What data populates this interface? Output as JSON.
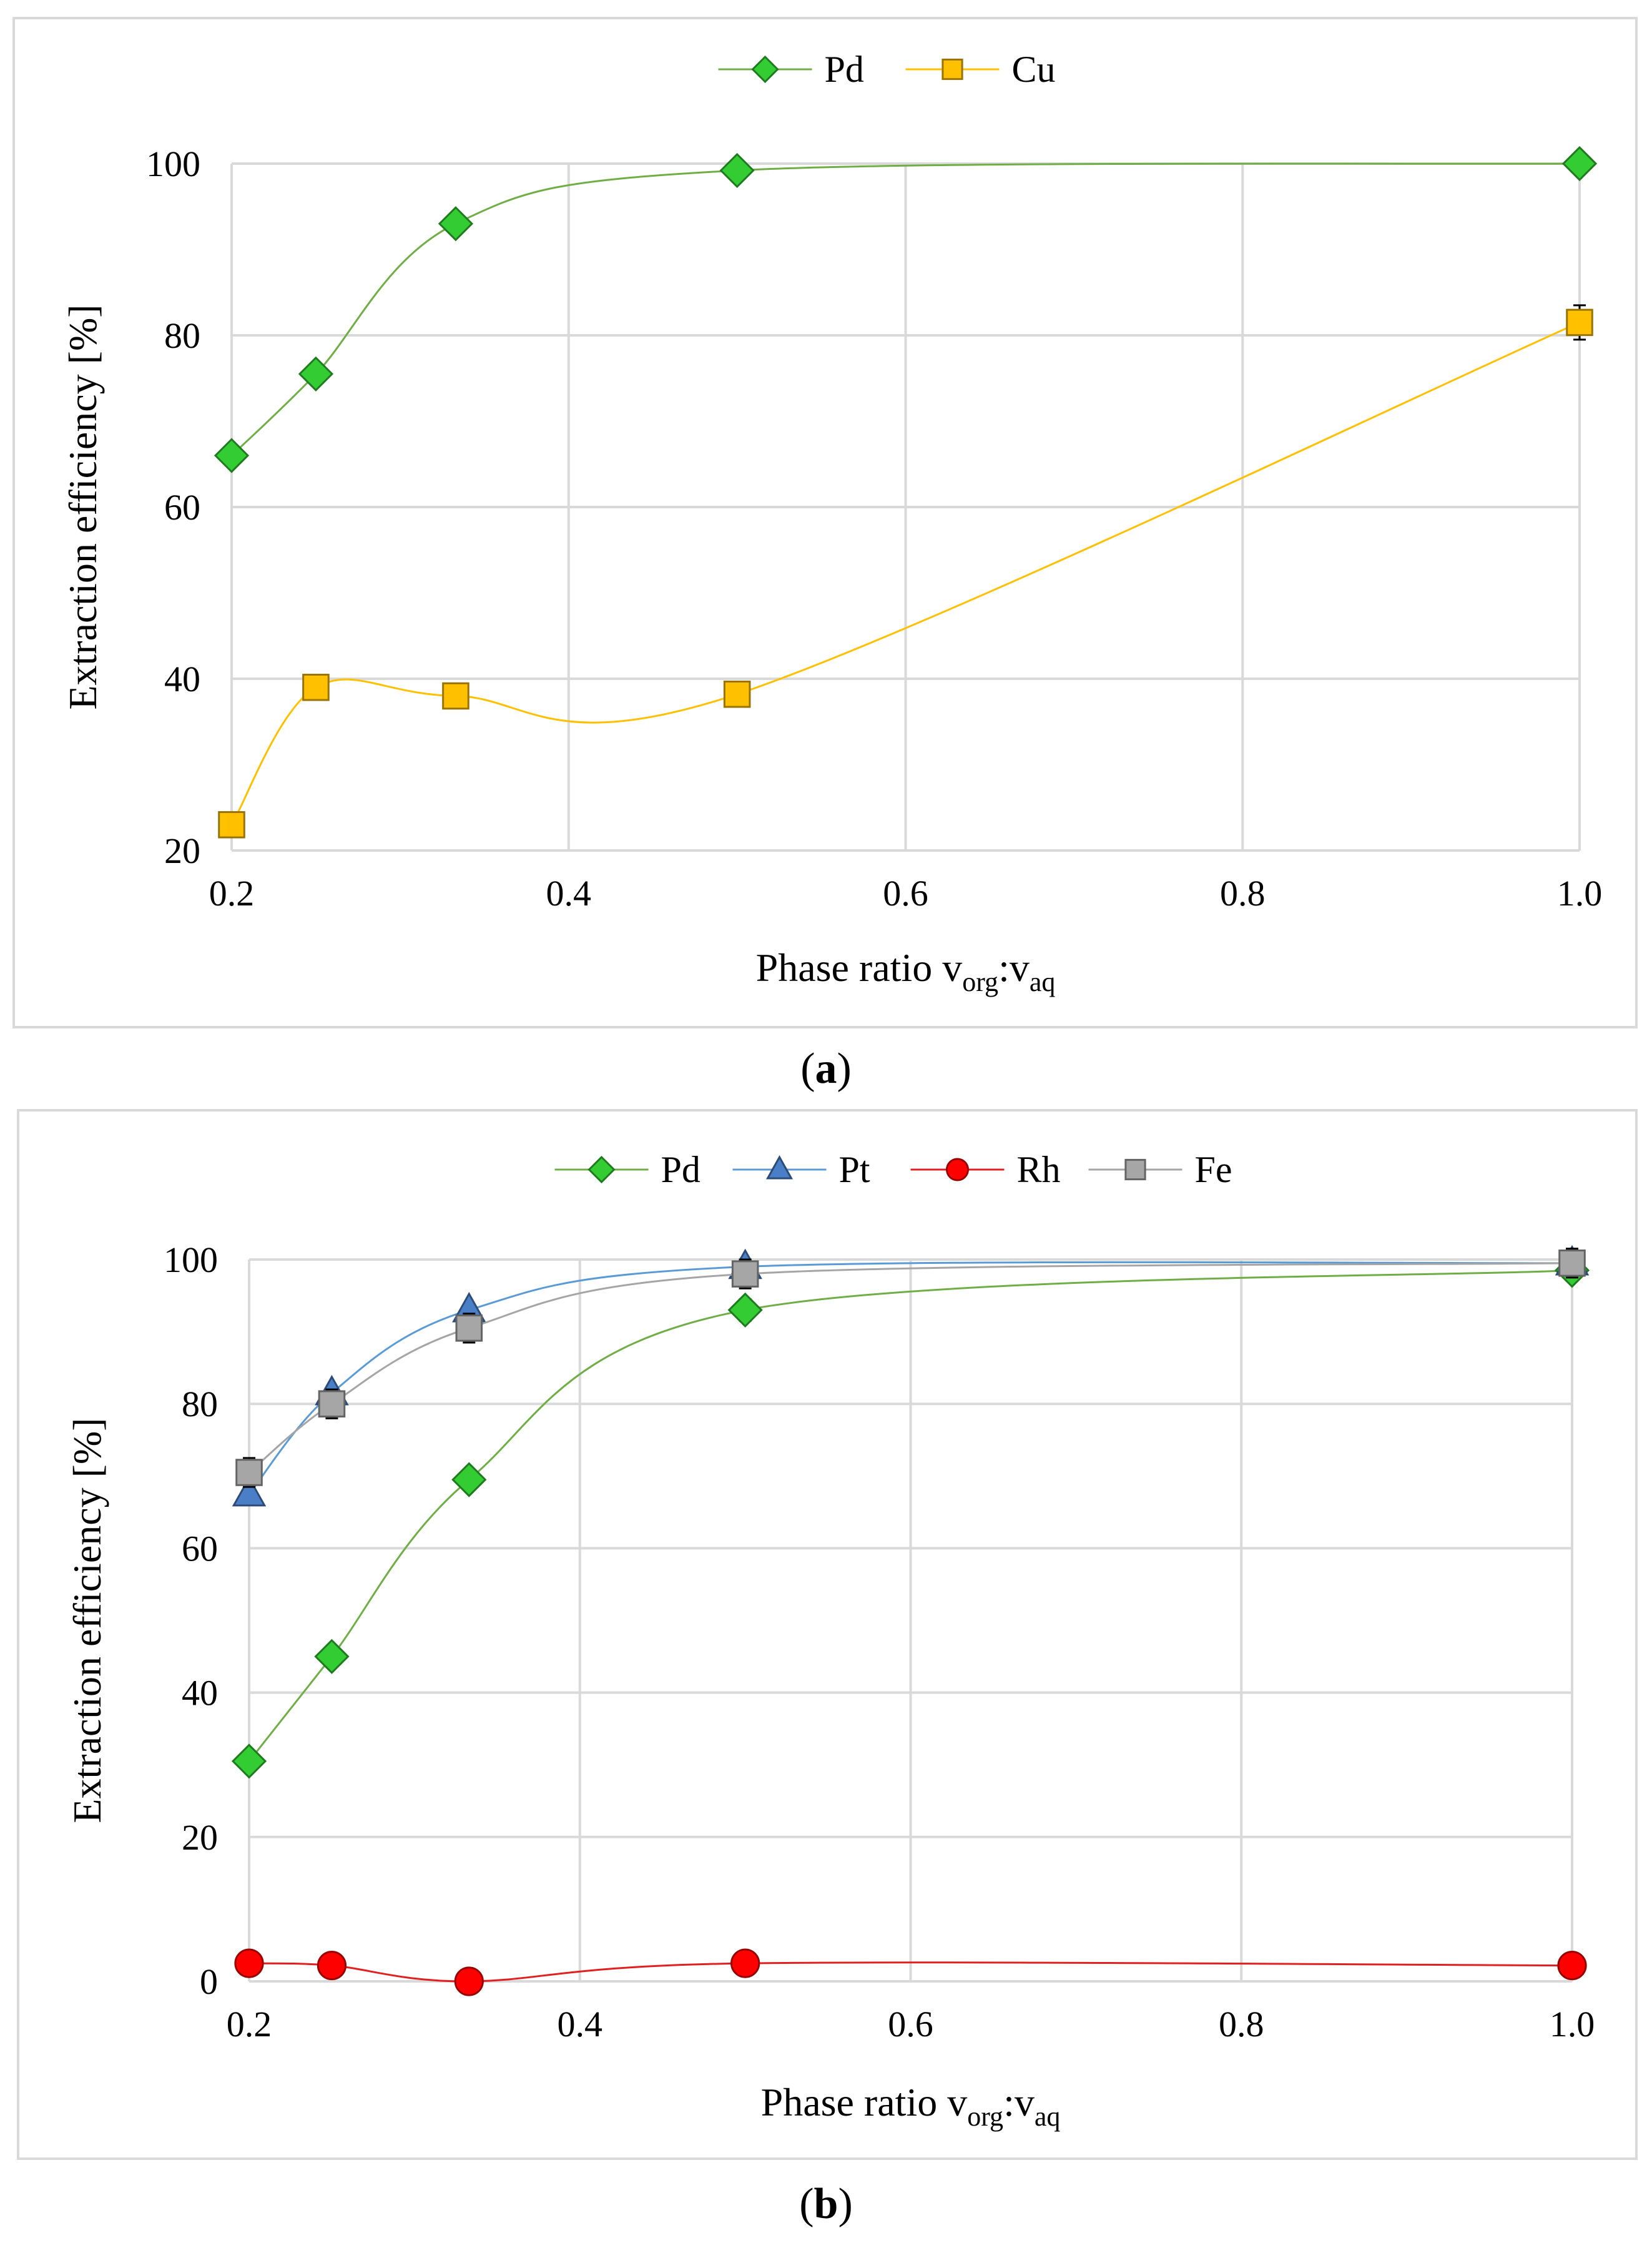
{
  "chart_data": [
    {
      "id": "a",
      "type": "line",
      "caption_letter": "a",
      "ylabel": "Extraction efficiency [%]",
      "xlabel": "Phase ratio v",
      "xlabel_sub1": "org",
      "xlabel_colon": ":v",
      "xlabel_sub2": "aq",
      "xlim": [
        0.2,
        1.0
      ],
      "ylim": [
        20,
        100
      ],
      "xticks": [
        0.2,
        0.4,
        0.6,
        0.8,
        1.0
      ],
      "xtick_labels": [
        "0.2",
        "0.4",
        "0.6",
        "0.8",
        "1.0"
      ],
      "yticks": [
        20,
        40,
        60,
        80,
        100
      ],
      "ytick_labels": [
        "20",
        "40",
        "60",
        "80",
        "100"
      ],
      "grid": true,
      "legend": "top-center",
      "series": [
        {
          "name": "Pd",
          "color": "#70AD47",
          "marker_color": "#33CC33",
          "marker": "diamond",
          "x": [
            0.2,
            0.25,
            0.333,
            0.5,
            1.0
          ],
          "y": [
            66,
            75.5,
            93,
            99.2,
            100
          ],
          "err": [
            0,
            0,
            0,
            0,
            0
          ]
        },
        {
          "name": "Cu",
          "color": "#FFC000",
          "marker_color": "#FFC000",
          "marker": "square",
          "x": [
            0.2,
            0.25,
            0.333,
            0.5,
            1.0
          ],
          "y": [
            23,
            39,
            38,
            38.2,
            81.5
          ],
          "err": [
            0,
            0,
            0,
            0,
            2
          ]
        }
      ]
    },
    {
      "id": "b",
      "type": "line",
      "caption_letter": "b",
      "ylabel": "Extraction efficiency [%]",
      "xlabel": "Phase ratio v",
      "xlabel_sub1": "org",
      "xlabel_colon": ":v",
      "xlabel_sub2": "aq",
      "xlim": [
        0.2,
        1.0
      ],
      "ylim": [
        0,
        100
      ],
      "xticks": [
        0.2,
        0.4,
        0.6,
        0.8,
        1.0
      ],
      "xtick_labels": [
        "0.2",
        "0.4",
        "0.6",
        "0.8",
        "1.0"
      ],
      "yticks": [
        0,
        20,
        40,
        60,
        80,
        100
      ],
      "ytick_labels": [
        "0",
        "20",
        "40",
        "60",
        "80",
        "100"
      ],
      "grid": true,
      "legend": "top-center",
      "series": [
        {
          "name": "Pd",
          "color": "#70AD47",
          "marker_color": "#33CC33",
          "marker": "diamond",
          "x": [
            0.2,
            0.25,
            0.333,
            0.5,
            1.0
          ],
          "y": [
            30.5,
            45,
            69.5,
            93,
            98.5
          ],
          "err": [
            0,
            0,
            0,
            1.5,
            0
          ]
        },
        {
          "name": "Pt",
          "color": "#5B9BD5",
          "marker_color": "#4A7EC7",
          "marker": "triangle",
          "x": [
            0.2,
            0.25,
            0.333,
            0.5,
            1.0
          ],
          "y": [
            67.5,
            81.5,
            93,
            99,
            99.5
          ],
          "err": [
            0,
            0,
            0,
            0,
            0
          ]
        },
        {
          "name": "Rh",
          "color": "#E02020",
          "marker_color": "#FF0000",
          "marker": "circle",
          "x": [
            0.2,
            0.25,
            0.333,
            0.5,
            1.0
          ],
          "y": [
            2.5,
            2.2,
            0,
            2.5,
            2.2
          ],
          "err": [
            0,
            0,
            0,
            0,
            0
          ]
        },
        {
          "name": "Fe",
          "color": "#A5A5A5",
          "marker_color": "#A6A6A6",
          "marker": "square",
          "x": [
            0.2,
            0.25,
            0.333,
            0.5,
            1.0
          ],
          "y": [
            70.5,
            80,
            90.5,
            98,
            99.5
          ],
          "err": [
            2,
            2,
            2,
            2,
            2
          ]
        }
      ]
    }
  ]
}
